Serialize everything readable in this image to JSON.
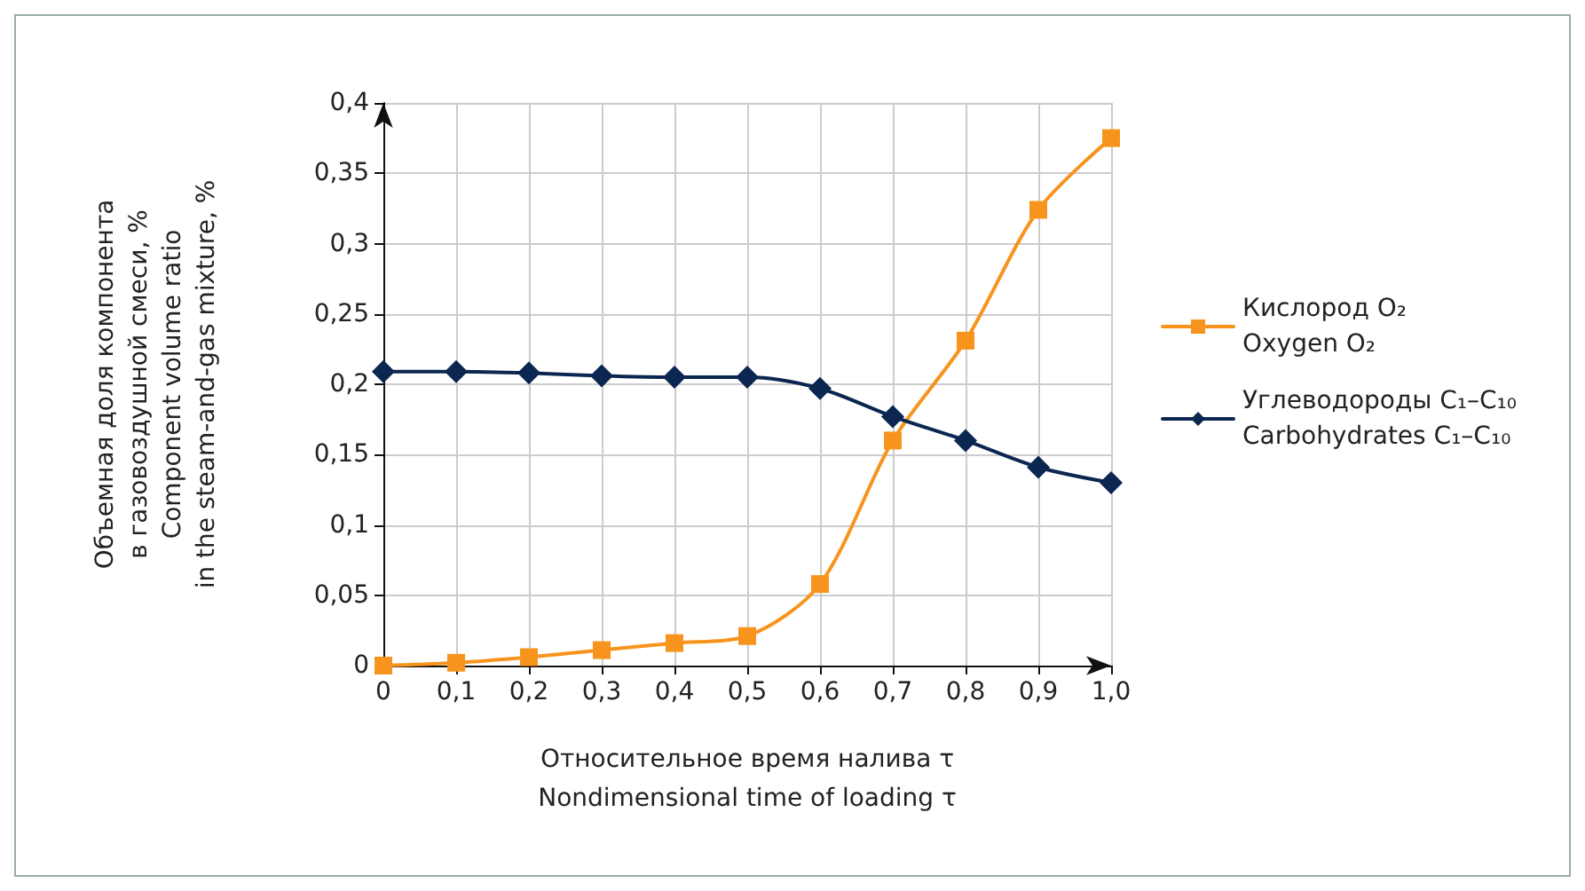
{
  "chart_data": {
    "type": "line",
    "xlabel": "Относительное время налива τ\nNondimensional time of loading τ",
    "ylabel": "Объемная доля компонента\nв газовоздушной смеси, %\nComponent volume ratio\nin the steam-and-gas mixture, %",
    "x": [
      0,
      0.1,
      0.2,
      0.3,
      0.4,
      0.5,
      0.6,
      0.7,
      0.8,
      0.9,
      1.0
    ],
    "series": [
      {
        "name": "Кислород O₂\nOxygen O₂",
        "color": "#f7941d",
        "marker": "square",
        "values": [
          0,
          0.002,
          0.006,
          0.011,
          0.016,
          0.021,
          0.058,
          0.16,
          0.231,
          0.324,
          0.375
        ]
      },
      {
        "name": "Углеводороды C₁–C₁₀\nCarbohydrates C₁–C₁₀",
        "color": "#0b2650",
        "marker": "diamond",
        "values": [
          0.209,
          0.209,
          0.208,
          0.206,
          0.205,
          0.205,
          0.197,
          0.177,
          0.16,
          0.141,
          0.13
        ]
      }
    ],
    "xlim": [
      0,
      1.0
    ],
    "xticks": [
      0,
      {
        "value": 0.1,
        "label": "0,1"
      },
      {
        "value": 0.2,
        "label": "0,2"
      },
      {
        "value": 0.3,
        "label": "0,3"
      },
      {
        "value": 0.4,
        "label": "0,4"
      },
      {
        "value": 0.5,
        "label": "0,5"
      },
      {
        "value": 0.6,
        "label": "0,6"
      },
      {
        "value": 0.7,
        "label": "0,7"
      },
      {
        "value": 0.8,
        "label": "0,8"
      },
      {
        "value": 0.9,
        "label": "0,9"
      },
      {
        "value": 1.0,
        "label": "1,0"
      }
    ],
    "ylim": [
      0,
      0.4
    ],
    "yticks": [
      0,
      {
        "value": 0.05,
        "label": "0,05"
      },
      {
        "value": 0.1,
        "label": "0,1"
      },
      {
        "value": 0.15,
        "label": "0,15"
      },
      {
        "value": 0.2,
        "label": "0,2"
      },
      {
        "value": 0.25,
        "label": "0,25"
      },
      {
        "value": 0.3,
        "label": "0,3"
      },
      {
        "value": 0.35,
        "label": "0,35"
      },
      {
        "value": 0.4,
        "label": "0,4"
      }
    ],
    "grid": true,
    "legend": "right",
    "line_style": "solid"
  }
}
